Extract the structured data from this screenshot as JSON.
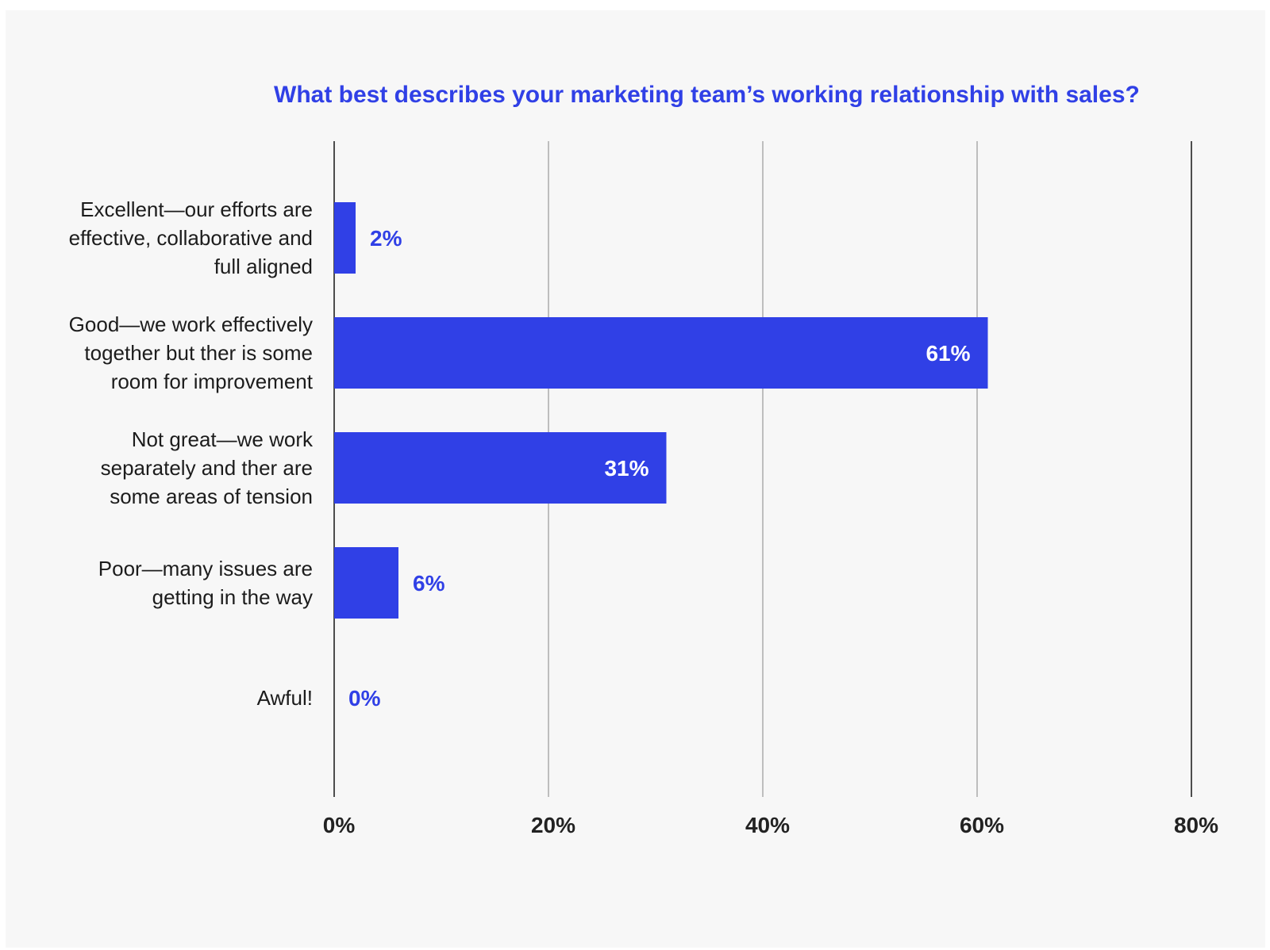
{
  "colors": {
    "background": "#f7f7f7",
    "bar": "#3040e6",
    "title": "#3040e6",
    "label_inside": "#ffffff",
    "label_outside": "#3040e6",
    "grid": "#999999",
    "axis": "#222222"
  },
  "chart_data": {
    "type": "bar",
    "orientation": "horizontal",
    "title": "What best describes your marketing team’s working relationship with sales?",
    "xlabel": "",
    "ylabel": "",
    "xlim": [
      0,
      80
    ],
    "x_ticks": [
      0,
      20,
      40,
      60,
      80
    ],
    "x_tick_labels": [
      "0%",
      "20%",
      "40%",
      "60%",
      "80%"
    ],
    "grid": true,
    "legend": "none",
    "categories": [
      {
        "lines": [
          "Excellent—our efforts are",
          "effective, collaborative and",
          "full aligned"
        ]
      },
      {
        "lines": [
          "Good—we work effectively",
          "together but ther is some",
          "room for improvement"
        ]
      },
      {
        "lines": [
          "Not great—we work",
          "separately and ther are",
          "some areas of tension"
        ]
      },
      {
        "lines": [
          "Poor—many issues are",
          "getting in the way"
        ]
      },
      {
        "lines": [
          "Awful!"
        ]
      }
    ],
    "values": [
      2,
      61,
      31,
      6,
      0
    ],
    "value_labels": [
      "2%",
      "61%",
      "31%",
      "6%",
      "0%"
    ]
  }
}
